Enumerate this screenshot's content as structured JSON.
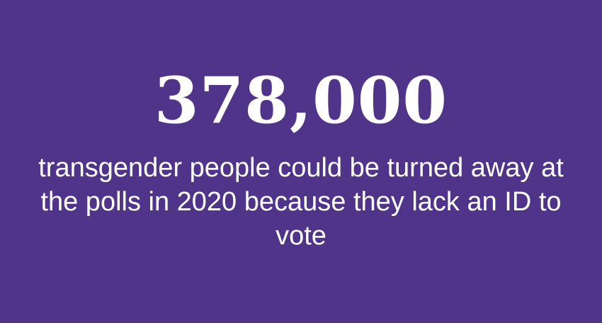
{
  "stat": {
    "number": "378,000",
    "caption": "transgender people could be turned away at the polls in 2020 because they lack an ID to vote"
  },
  "colors": {
    "background": "#4f3489",
    "text": "#ffffff"
  }
}
